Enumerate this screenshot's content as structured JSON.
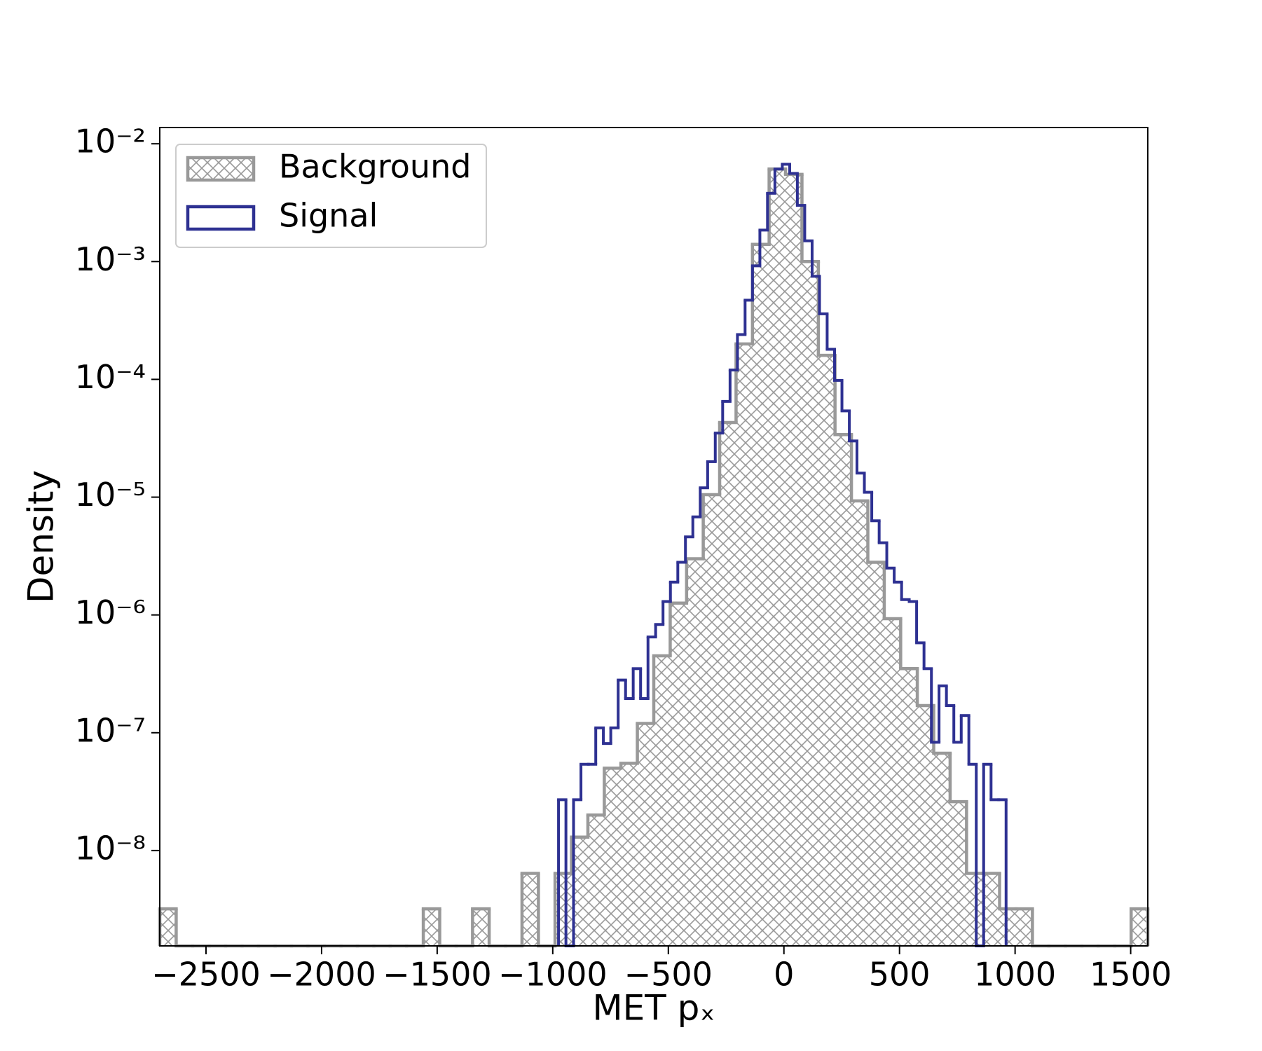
{
  "chart_data": {
    "type": "histogram",
    "xlabel": "MET pₓ",
    "ylabel": "Density",
    "yscale": "log",
    "legend": "upper left",
    "xlim": [
      -2700,
      1574
    ],
    "ylim": [
      1.55e-09,
      0.01374
    ],
    "xticks": [
      {
        "value": -2500,
        "label": "−2500"
      },
      {
        "value": -2000,
        "label": "−2000"
      },
      {
        "value": -1500,
        "label": "−1500"
      },
      {
        "value": -1000,
        "label": "−1000"
      },
      {
        "value": -500,
        "label": "−500"
      },
      0,
      500,
      1000,
      1500
    ],
    "yticks": [
      {
        "value": 1e-08,
        "label": "10⁻⁸"
      },
      {
        "value": 1e-07,
        "label": "10⁻⁷"
      },
      {
        "value": 1e-06,
        "label": "10⁻⁶"
      },
      {
        "value": 1e-05,
        "label": "10⁻⁵"
      },
      {
        "value": 0.0001,
        "label": "10⁻⁴"
      },
      {
        "value": 0.001,
        "label": "10⁻³"
      },
      {
        "value": 0.01,
        "label": "10⁻²"
      }
    ],
    "series": [
      {
        "name": "Background",
        "color": "#999999",
        "hatch": "xx",
        "bins": [
          -2700,
          -2629,
          -2558,
          -2486,
          -2415,
          -2344,
          -2273,
          -2201,
          -2130,
          -2059,
          -1988,
          -1916,
          -1845,
          -1774,
          -1703,
          -1632,
          -1560,
          -1489,
          -1418,
          -1347,
          -1275,
          -1204,
          -1133,
          -1062,
          -990,
          -919,
          -848,
          -777,
          -705,
          -634,
          -563,
          -492,
          -421,
          -349,
          -278,
          -207,
          -136,
          -64,
          7,
          78,
          149,
          221,
          292,
          363,
          434,
          505,
          577,
          648,
          719,
          790,
          861,
          933,
          1004,
          1075,
          1146,
          1218,
          1289,
          1360,
          1431,
          1502,
          1574
        ],
        "values": [
          3.2e-09,
          0,
          0,
          0,
          0,
          0,
          0,
          0,
          0,
          0,
          0,
          0,
          0,
          0,
          0,
          0,
          3.2e-09,
          0,
          0,
          3.2e-09,
          0,
          0,
          6.4e-09,
          0,
          6.4e-09,
          1.3e-08,
          2e-08,
          5e-08,
          5.5e-08,
          1.2e-07,
          4.5e-07,
          1.26e-06,
          3e-06,
          1.05e-05,
          4.3e-05,
          0.0002,
          0.0014,
          0.0061,
          0.0055,
          0.001,
          0.00016,
          3.4e-05,
          9.3e-06,
          2.8e-06,
          9.3e-07,
          3.5e-07,
          1.7e-07,
          6.7e-08,
          2.6e-08,
          6.4e-09,
          6.4e-09,
          3.2e-09,
          3.2e-09,
          0,
          0,
          0,
          0,
          0,
          0,
          3.2e-09
        ]
      },
      {
        "name": "Signal",
        "color": "#2e3192",
        "bins": [
          -975,
          -943,
          -910,
          -878,
          -846,
          -814,
          -781,
          -749,
          -717,
          -685,
          -652,
          -620,
          -588,
          -555,
          -523,
          -491,
          -459,
          -426,
          -394,
          -362,
          -330,
          -297,
          -265,
          -233,
          -201,
          -168,
          -136,
          -104,
          -71,
          -39,
          -7,
          25,
          58,
          90,
          122,
          154,
          187,
          219,
          251,
          283,
          316,
          348,
          380,
          412,
          445,
          477,
          509,
          542,
          574,
          606,
          638,
          671,
          703,
          735,
          767,
          800,
          832,
          864,
          896,
          929,
          961
        ],
        "values": [
          2.7e-08,
          0,
          2.7e-08,
          5.4e-08,
          5.4e-08,
          1.1e-07,
          8.1e-08,
          1.1e-07,
          2.8e-07,
          1.95e-07,
          3.5e-07,
          1.95e-07,
          6.5e-07,
          8.3e-07,
          1.3e-06,
          1.9e-06,
          2.8e-06,
          4.6e-06,
          6.8e-06,
          1.2e-05,
          2e-05,
          3.5e-05,
          6.5e-05,
          0.00012,
          0.00024,
          0.00047,
          0.00092,
          0.00185,
          0.0038,
          0.0061,
          0.0067,
          0.0056,
          0.003,
          0.0015,
          0.00075,
          0.00036,
          0.00018,
          9.8e-05,
          5.4e-05,
          3e-05,
          1.6e-05,
          1.1e-05,
          6.3e-06,
          4.1e-06,
          2.5e-06,
          1.9e-06,
          1.35e-06,
          1.3e-06,
          5.8e-07,
          3.5e-07,
          8.3e-08,
          2.5e-07,
          1.7e-07,
          8.3e-08,
          1.4e-07,
          5.4e-08,
          0,
          5.4e-08,
          2.7e-08,
          2.7e-08
        ]
      }
    ]
  }
}
